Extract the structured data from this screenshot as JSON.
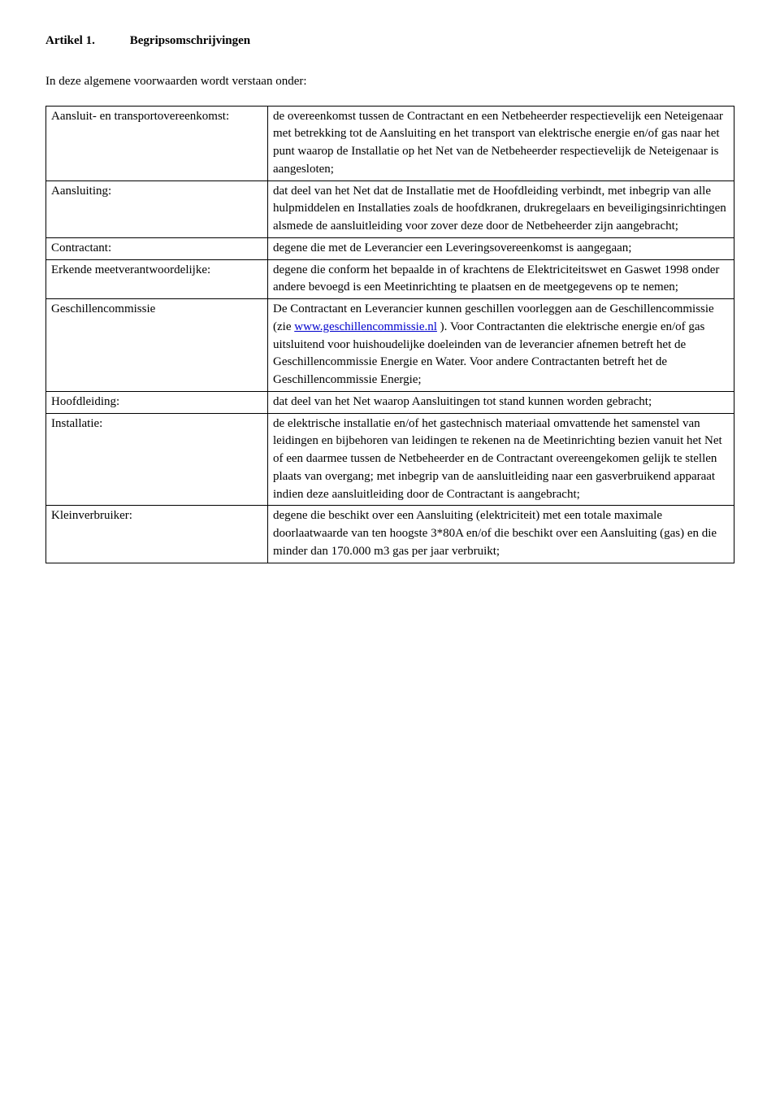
{
  "heading": {
    "article": "Artikel 1.",
    "title": "Begripsomschrijvingen"
  },
  "intro": "In deze algemene voorwaarden wordt verstaan onder:",
  "rows": [
    {
      "term": "Aansluit- en transportovereenkomst:",
      "def": "de overeenkomst tussen de Contractant en een Netbeheerder respectievelijk een Neteigenaar met betrekking tot de Aansluiting en het transport van elektrische energie en/of gas naar het punt waarop de Installatie op het Net van de Netbeheerder respectievelijk de Neteigenaar is aangesloten;"
    },
    {
      "term": "Aansluiting:",
      "def": "dat deel van het Net dat de Installatie met de Hoofdleiding verbindt, met inbegrip van alle hulpmiddelen en Installaties zoals de hoofdkranen, drukregelaars en beveiligingsinrichtingen alsmede de aansluitleiding voor zover deze door de Netbeheerder zijn aangebracht;"
    },
    {
      "term": "Contractant:",
      "def": "degene die met de Leverancier een Leveringsovereenkomst is aangegaan;"
    },
    {
      "term": "Erkende meetverantwoordelijke:",
      "def": "degene die conform het bepaalde in of krachtens de Elektriciteitswet en Gaswet 1998 onder andere bevoegd is een Meetinrichting te plaatsen en de meetgegevens op te nemen;"
    },
    {
      "term": "Geschillencommissie",
      "def_pre": "De Contractant en Leverancier kunnen geschillen voorleggen aan de Geschillencommissie (zie ",
      "link_text": "www.geschillencommissie.nl",
      "def_post": " ). Voor Contractanten die elektrische energie en/of gas uitsluitend voor huishoudelijke doeleinden van de leverancier afnemen betreft het de Geschillencommissie Energie en Water. Voor andere Contractanten betreft het de Geschillencommissie Energie;"
    },
    {
      "term": "Hoofdleiding:",
      "def": "dat deel van het Net waarop Aansluitingen tot stand kunnen worden gebracht;"
    },
    {
      "term": "Installatie:",
      "def": "de elektrische installatie en/of het gastechnisch materiaal omvattende het samenstel van leidingen en bijbehoren van leidingen te rekenen na de Meetinrichting bezien vanuit het Net of een daarmee tussen de Netbeheerder en de Contractant overeengekomen gelijk te stellen plaats van overgang; met inbegrip van de aansluitleiding naar een gasverbruikend apparaat indien deze aansluitleiding door de Contractant is aangebracht;"
    },
    {
      "term": "Kleinverbruiker:",
      "def": "degene die beschikt over een Aansluiting (elektriciteit) met een totale maximale doorlaatwaarde van ten hoogste 3*80A en/of die beschikt over een Aansluiting (gas) en die minder dan 170.000 m3 gas per jaar verbruikt;"
    }
  ]
}
